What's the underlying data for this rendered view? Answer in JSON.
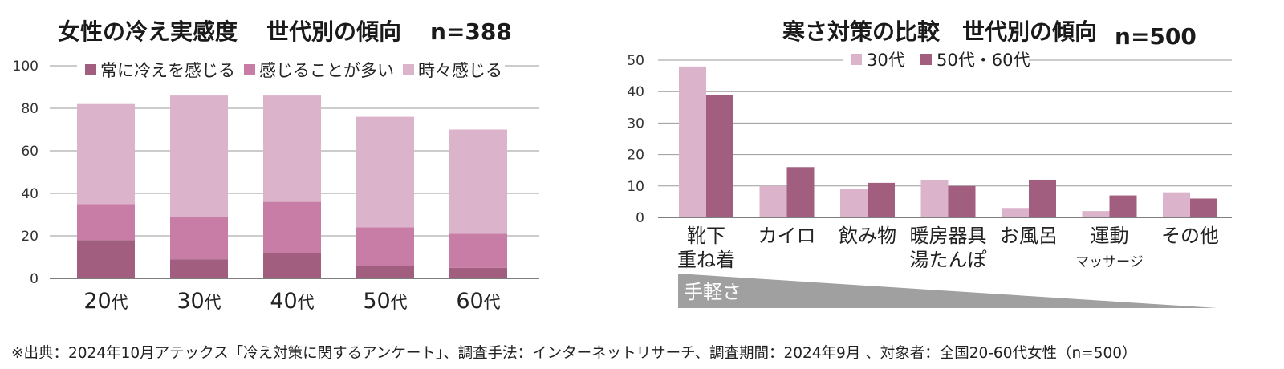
{
  "left_title": "女性の冷え実感度",
  "left_n": "n=388",
  "right_title": "寒さ対策の比較　世代別の傾向",
  "right_n": "n=500",
  "footer": "※出典：2024年10月アテックス「冷え対策に関するアンケート」、調査手法：インターネットリサーチ、調査期間：2024年9月 、対象者：全国20-60代女性（n=500）",
  "chart_data": [
    {
      "type": "bar",
      "stacked": true,
      "title": "女性の冷え実感度　世代別の傾向",
      "n_label": "n=388",
      "categories": [
        "20",
        "30",
        "40",
        "50",
        "60"
      ],
      "category_suffix": "代",
      "ylim": [
        0,
        100
      ],
      "yticks": [
        0,
        20,
        40,
        60,
        80,
        100
      ],
      "grid": true,
      "legend": "top",
      "series": [
        {
          "name": "常に冷えを感じる",
          "values": [
            18,
            9,
            12,
            6,
            5
          ],
          "color": "#a15e7e"
        },
        {
          "name": "感じることが多い",
          "values": [
            17,
            20,
            24,
            18,
            16
          ],
          "color": "#c87da6"
        },
        {
          "name": "時々感じる",
          "values": [
            47,
            57,
            50,
            52,
            49
          ],
          "color": "#dbb3cb"
        }
      ]
    },
    {
      "type": "bar",
      "title": "寒さ対策の比較　世代別の傾向",
      "n_label": "n=500",
      "categories": [
        {
          "lines": [
            "靴下",
            "重ね着"
          ]
        },
        {
          "lines": [
            "カイロ"
          ]
        },
        {
          "lines": [
            "飲み物"
          ]
        },
        {
          "lines": [
            "暖房器具",
            "湯たんぽ"
          ]
        },
        {
          "lines": [
            "お風呂"
          ]
        },
        {
          "lines": [
            "運動",
            "マッサージ"
          ]
        },
        {
          "lines": [
            "その他"
          ]
        }
      ],
      "ylim": [
        0,
        50
      ],
      "yticks": [
        0,
        10,
        20,
        30,
        40,
        50
      ],
      "grid": true,
      "legend": "top",
      "series": [
        {
          "name": "30代",
          "values": [
            48,
            10,
            9,
            12,
            3,
            2,
            8
          ],
          "color": "#dbb3cb"
        },
        {
          "name": "50代・60代",
          "values": [
            39,
            16,
            11,
            10,
            12,
            7,
            6
          ],
          "color": "#a15e7e"
        }
      ],
      "annotation": {
        "label": "手軽さ",
        "color": "#a0a0a0"
      }
    }
  ]
}
